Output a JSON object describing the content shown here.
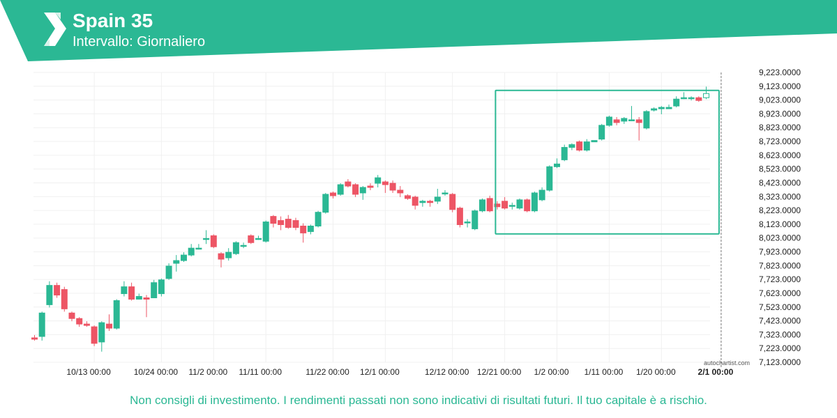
{
  "header": {
    "title": "Spain 35",
    "subtitle": "Intervallo: Giornaliero",
    "brand_color": "#2bb894"
  },
  "footer": {
    "disclaimer": "Non consigli di investimento. I rendimenti passati non sono indicativi di risultati futuri. Il tuo capitale è a rischio."
  },
  "watermark": "autochartist.com",
  "chart_data": {
    "type": "candlestick",
    "title": "Spain 35",
    "colors": {
      "up": "#2bb894",
      "down": "#ed5565",
      "grid": "#f0f0f0",
      "axis": "#222222",
      "pattern": "#2bb894"
    },
    "ylim": [
      7123,
      9223
    ],
    "y_ticks": [
      "9,223.0000",
      "9,123.0000",
      "9,023.0000",
      "8,923.0000",
      "8,823.0000",
      "8,723.0000",
      "8,623.0000",
      "8,523.0000",
      "8,423.0000",
      "8,323.0000",
      "8,223.0000",
      "8,123.0000",
      "8,023.0000",
      "7,923.0000",
      "7,823.0000",
      "7,723.0000",
      "7,623.0000",
      "7,523.0000",
      "7,423.0000",
      "7,323.0000",
      "7,223.0000",
      "7,123.0000"
    ],
    "x_ticks": [
      {
        "label": "10/13 00:00",
        "index": 8
      },
      {
        "label": "10/24 00:00",
        "index": 17
      },
      {
        "label": "11/2 00:00",
        "index": 24
      },
      {
        "label": "11/11 00:00",
        "index": 31
      },
      {
        "label": "11/22 00:00",
        "index": 40
      },
      {
        "label": "12/1 00:00",
        "index": 47
      },
      {
        "label": "12/12 00:00",
        "index": 56
      },
      {
        "label": "12/21 00:00",
        "index": 63
      },
      {
        "label": "1/2 00:00",
        "index": 70
      },
      {
        "label": "1/11 00:00",
        "index": 77
      },
      {
        "label": "1/20 00:00",
        "index": 84
      },
      {
        "label": "2/1 00:00",
        "index": 92,
        "bold": true
      }
    ],
    "current_index": 92,
    "candles": [
      [
        7300,
        7290,
        7320,
        7280
      ],
      [
        7310,
        7480,
        7490,
        7280
      ],
      [
        7540,
        7680,
        7710,
        7520
      ],
      [
        7680,
        7610,
        7700,
        7590
      ],
      [
        7650,
        7510,
        7670,
        7490
      ],
      [
        7480,
        7440,
        7490,
        7420
      ],
      [
        7440,
        7400,
        7450,
        7380
      ],
      [
        7400,
        7390,
        7420,
        7380
      ],
      [
        7380,
        7260,
        7390,
        7240
      ],
      [
        7270,
        7410,
        7420,
        7200
      ],
      [
        7400,
        7370,
        7470,
        7350
      ],
      [
        7370,
        7570,
        7580,
        7360
      ],
      [
        7620,
        7670,
        7710,
        7600
      ],
      [
        7670,
        7580,
        7700,
        7570
      ],
      [
        7580,
        7600,
        7620,
        7580
      ],
      [
        7590,
        7580,
        7610,
        7450
      ],
      [
        7590,
        7700,
        7720,
        7590
      ],
      [
        7620,
        7720,
        7730,
        7600
      ],
      [
        7730,
        7820,
        7840,
        7720
      ],
      [
        7840,
        7860,
        7900,
        7780
      ],
      [
        7860,
        7900,
        7920,
        7850
      ],
      [
        7900,
        7950,
        7980,
        7890
      ],
      [
        7950,
        7950,
        7980,
        7940
      ],
      [
        8020,
        8020,
        8080,
        7980
      ],
      [
        8040,
        7960,
        8050,
        7950
      ],
      [
        7910,
        7870,
        7920,
        7810
      ],
      [
        7880,
        7920,
        7950,
        7860
      ],
      [
        7910,
        7990,
        8000,
        7900
      ],
      [
        7970,
        7970,
        7990,
        7950
      ],
      [
        8040,
        7990,
        8050,
        7980
      ],
      [
        8020,
        8020,
        8040,
        8010
      ],
      [
        8000,
        8140,
        8150,
        7990
      ],
      [
        8180,
        8130,
        8190,
        8100
      ],
      [
        8150,
        8120,
        8180,
        8080
      ],
      [
        8160,
        8100,
        8190,
        8090
      ],
      [
        8150,
        8100,
        8170,
        8080
      ],
      [
        8110,
        8060,
        8130,
        7990
      ],
      [
        8070,
        8110,
        8120,
        8050
      ],
      [
        8110,
        8210,
        8220,
        8100
      ],
      [
        8210,
        8340,
        8350,
        8200
      ],
      [
        8350,
        8330,
        8360,
        8310
      ],
      [
        8340,
        8410,
        8420,
        8330
      ],
      [
        8430,
        8400,
        8450,
        8390
      ],
      [
        8410,
        8340,
        8420,
        8320
      ],
      [
        8350,
        8390,
        8400,
        8300
      ],
      [
        8400,
        8390,
        8420,
        8370
      ],
      [
        8420,
        8460,
        8480,
        8390
      ],
      [
        8430,
        8410,
        8440,
        8350
      ],
      [
        8420,
        8370,
        8440,
        8350
      ],
      [
        8370,
        8350,
        8400,
        8320
      ],
      [
        8330,
        8310,
        8340,
        8300
      ],
      [
        8320,
        8260,
        8330,
        8230
      ],
      [
        8280,
        8290,
        8300,
        8250
      ],
      [
        8290,
        8280,
        8300,
        8250
      ],
      [
        8290,
        8320,
        8380,
        8270
      ],
      [
        8350,
        8350,
        8370,
        8330
      ],
      [
        8340,
        8230,
        8350,
        8210
      ],
      [
        8240,
        8120,
        8250,
        8100
      ],
      [
        8140,
        8140,
        8160,
        8100
      ],
      [
        8090,
        8220,
        8230,
        8080
      ],
      [
        8220,
        8300,
        8310,
        8210
      ],
      [
        8310,
        8220,
        8330,
        8210
      ],
      [
        8270,
        8250,
        8290,
        8230
      ],
      [
        8290,
        8240,
        8320,
        8230
      ],
      [
        8260,
        8260,
        8280,
        8230
      ],
      [
        8240,
        8300,
        8310,
        8230
      ],
      [
        8300,
        8220,
        8310,
        8210
      ],
      [
        8220,
        8350,
        8360,
        8210
      ],
      [
        8300,
        8370,
        8390,
        8290
      ],
      [
        8370,
        8540,
        8550,
        8360
      ],
      [
        8540,
        8560,
        8600,
        8530
      ],
      [
        8590,
        8680,
        8700,
        8580
      ],
      [
        8680,
        8700,
        8710,
        8660
      ],
      [
        8720,
        8660,
        8730,
        8650
      ],
      [
        8660,
        8720,
        8740,
        8650
      ],
      [
        8720,
        8730,
        8730,
        8720
      ],
      [
        8740,
        8840,
        8850,
        8730
      ],
      [
        8840,
        8900,
        8910,
        8830
      ],
      [
        8880,
        8860,
        8900,
        8840
      ],
      [
        8870,
        8890,
        8900,
        8850
      ],
      [
        8880,
        8880,
        8980,
        8870
      ],
      [
        8880,
        8860,
        8900,
        8730
      ],
      [
        8820,
        8940,
        8950,
        8810
      ],
      [
        8950,
        8960,
        8970,
        8940
      ],
      [
        8960,
        8970,
        8980,
        8920
      ],
      [
        8960,
        8970,
        8990,
        8960
      ],
      [
        8980,
        9030,
        9050,
        8970
      ],
      [
        9040,
        9040,
        9080,
        9030
      ],
      [
        9040,
        9040,
        9050,
        9020
      ],
      [
        9040,
        9020,
        9050,
        9010
      ],
      [
        9040,
        9070,
        9120,
        9030
      ]
    ],
    "highlight": {
      "from_index": 62,
      "to_index": 92,
      "low": 8053,
      "high": 9093
    }
  }
}
